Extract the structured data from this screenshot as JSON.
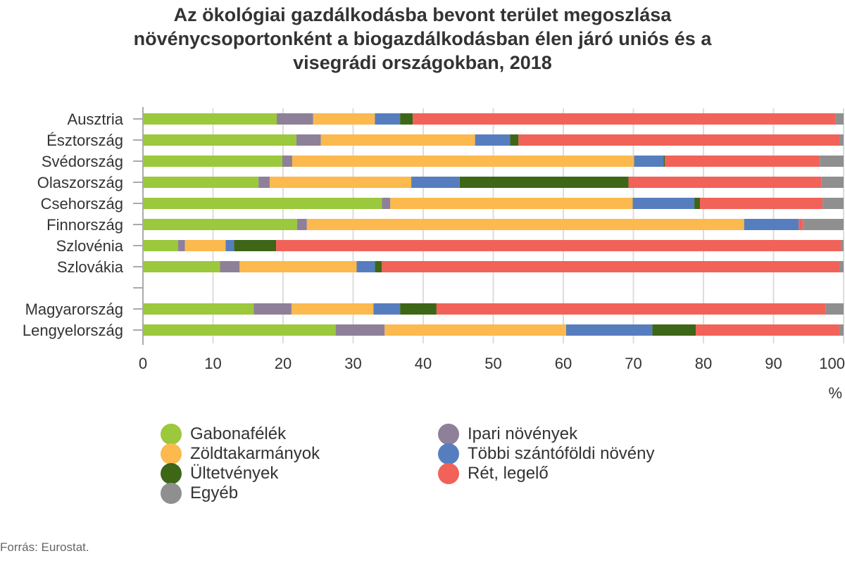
{
  "chart_data": {
    "type": "bar",
    "orientation": "horizontal",
    "stacked": true,
    "title": "Az ökológiai gazdálkodásba bevont terület megoszlása növénycsoportonként a biogazdálkodásban élen járó uniós és a visegrádi országokban, 2018",
    "title_lines": [
      "Az ökológiai gazdálkodásba bevont terület megoszlása",
      "növénycsoportonként a biogazdálkodásban élen járó uniós és a",
      "visegrádi országokban, 2018"
    ],
    "categories": [
      "Ausztria",
      "Észtország",
      "Svédország",
      "Olaszország",
      "Csehország",
      "Finnország",
      "Szlovénia",
      "Szlovákia",
      "",
      "Magyarország",
      "Lengyelország"
    ],
    "series": [
      {
        "name": "Gabonafélék",
        "color": "#9bc83c",
        "values": [
          19.1,
          21.9,
          19.9,
          16.5,
          34.1,
          22.0,
          5.0,
          11.0,
          null,
          15.8,
          27.5
        ]
      },
      {
        "name": "Ipari növények",
        "color": "#8e8099",
        "values": [
          5.2,
          3.5,
          1.4,
          1.6,
          1.2,
          1.4,
          1.0,
          2.8,
          null,
          5.4,
          7.0
        ]
      },
      {
        "name": "Zöldtakarmányok",
        "color": "#fbb94e",
        "values": [
          8.8,
          22.0,
          48.8,
          20.2,
          34.6,
          62.4,
          5.8,
          16.7,
          null,
          11.7,
          25.9
        ]
      },
      {
        "name": "Többi szántóföldi növény",
        "color": "#567ebf",
        "values": [
          3.6,
          5.0,
          4.2,
          6.9,
          8.8,
          7.8,
          1.2,
          2.6,
          null,
          3.8,
          12.3
        ]
      },
      {
        "name": "Ültetvények",
        "color": "#3e6617",
        "values": [
          1.8,
          1.2,
          0.2,
          24.1,
          0.8,
          0.0,
          6.0,
          1.0,
          null,
          5.2,
          6.2
        ]
      },
      {
        "name": "Rét, legelő",
        "color": "#f16258",
        "values": [
          60.3,
          45.8,
          22.1,
          27.5,
          17.5,
          0.6,
          80.6,
          65.3,
          null,
          55.5,
          20.5
        ]
      },
      {
        "name": "Egyéb",
        "color": "#8f8f90",
        "values": [
          1.2,
          0.6,
          3.4,
          3.2,
          3.0,
          5.8,
          0.4,
          0.6,
          null,
          2.6,
          0.6
        ]
      }
    ],
    "xlabel": "%",
    "ylabel": "",
    "xlim": [
      0,
      100
    ],
    "xticks": [
      "0",
      "10",
      "20",
      "30",
      "40",
      "50",
      "60",
      "70",
      "80",
      "90",
      "100"
    ],
    "grid": true,
    "legend_position": "bottom"
  },
  "legend": {
    "items": [
      {
        "label": "Gabonafélék",
        "color": "#9bc83c"
      },
      {
        "label": "Ipari növények",
        "color": "#8e8099"
      },
      {
        "label": "Zöldtakarmányok",
        "color": "#fbb94e"
      },
      {
        "label": "Többi szántóföldi növény",
        "color": "#567ebf"
      },
      {
        "label": "Ültetvények",
        "color": "#3e6617"
      },
      {
        "label": "Rét, legelő",
        "color": "#f16258"
      },
      {
        "label": "Egyéb",
        "color": "#8f8f90"
      }
    ]
  },
  "source": "Forrás: Eurostat."
}
